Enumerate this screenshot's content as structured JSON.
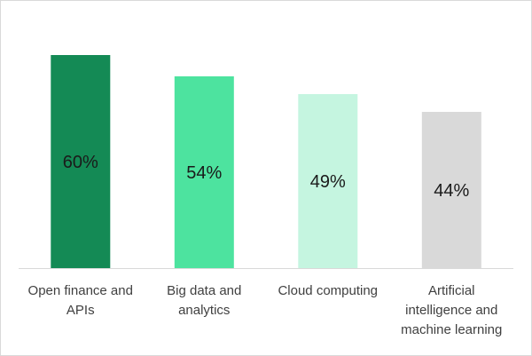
{
  "chart_data": {
    "type": "bar",
    "title": "",
    "xlabel": "",
    "ylabel": "",
    "ylim": [
      0,
      60
    ],
    "grid": false,
    "legend": "none",
    "categories": [
      [
        "Open finance and",
        "APIs"
      ],
      [
        "Big data and",
        "analytics"
      ],
      [
        "Cloud computing"
      ],
      [
        "Artificial",
        "intelligence and",
        "machine learning"
      ]
    ],
    "values": [
      60,
      54,
      49,
      44
    ],
    "data_labels": [
      "60%",
      "54%",
      "49%",
      "44%"
    ],
    "colors": [
      "#148a55",
      "#4de39f",
      "#c5f5e0",
      "#d9d9d9"
    ],
    "axis_color": "#d9d9d9"
  }
}
